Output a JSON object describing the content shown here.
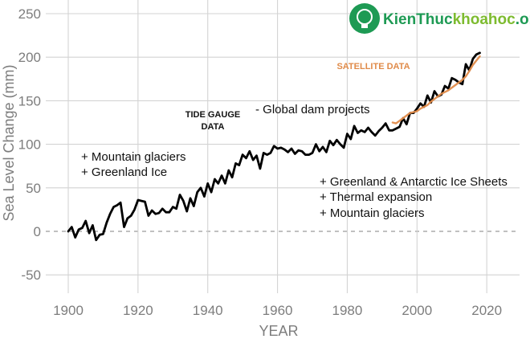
{
  "chart_data": {
    "type": "line",
    "xlabel": "YEAR",
    "ylabel": "Sea Level Change (mm)",
    "xlim": [
      1897,
      2024
    ],
    "ylim": [
      -62,
      252
    ],
    "x_ticks": [
      1900,
      1920,
      1940,
      1960,
      1980,
      2000,
      2020
    ],
    "y_ticks": [
      -50,
      0,
      50,
      100,
      150,
      200,
      250
    ],
    "grid": true,
    "zero_line": "dashed",
    "series": [
      {
        "name": "TIDE GAUGE DATA",
        "color": "#000000",
        "x": [
          1900,
          1901,
          1902,
          1903,
          1904,
          1905,
          1906,
          1907,
          1908,
          1909,
          1910,
          1911,
          1912,
          1913,
          1914,
          1915,
          1916,
          1917,
          1918,
          1919,
          1920,
          1921,
          1922,
          1923,
          1924,
          1925,
          1926,
          1927,
          1928,
          1929,
          1930,
          1931,
          1932,
          1933,
          1934,
          1935,
          1936,
          1937,
          1938,
          1939,
          1940,
          1941,
          1942,
          1943,
          1944,
          1945,
          1946,
          1947,
          1948,
          1949,
          1950,
          1951,
          1952,
          1953,
          1954,
          1955,
          1956,
          1957,
          1958,
          1959,
          1960,
          1961,
          1962,
          1963,
          1964,
          1965,
          1966,
          1967,
          1968,
          1969,
          1970,
          1971,
          1972,
          1973,
          1974,
          1975,
          1976,
          1977,
          1978,
          1979,
          1980,
          1981,
          1982,
          1983,
          1984,
          1985,
          1986,
          1987,
          1988,
          1989,
          1990,
          1991,
          1992,
          1993,
          1994,
          1995,
          1996,
          1997,
          1998,
          1999,
          2000,
          2001,
          2002,
          2003,
          2004,
          2005,
          2006,
          2007,
          2008,
          2009,
          2010,
          2011,
          2012,
          2013,
          2014,
          2015,
          2016,
          2017,
          2018
        ],
        "y": [
          0,
          5,
          -7,
          2,
          4,
          12,
          -2,
          7,
          -10,
          -4,
          -3,
          10,
          20,
          28,
          30,
          33,
          5,
          15,
          18,
          25,
          36,
          35,
          34,
          18,
          24,
          20,
          21,
          26,
          22,
          22,
          28,
          26,
          42,
          35,
          23,
          38,
          29,
          45,
          50,
          40,
          55,
          45,
          60,
          55,
          64,
          55,
          70,
          62,
          78,
          76,
          88,
          84,
          92,
          82,
          87,
          72,
          90,
          88,
          90,
          98,
          95,
          96,
          94,
          91,
          95,
          89,
          93,
          92,
          88,
          88,
          90,
          100,
          92,
          97,
          91,
          104,
          99,
          105,
          100,
          96,
          112,
          106,
          121,
          113,
          116,
          114,
          119,
          114,
          110,
          115,
          119,
          124,
          116,
          116,
          118,
          120,
          130,
          123,
          136,
          136,
          141,
          147,
          143,
          156,
          148,
          161,
          155,
          157,
          167,
          164,
          176,
          174,
          171,
          169,
          192,
          185,
          198,
          203,
          205
        ]
      },
      {
        "name": "SATELLITE DATA",
        "color": "#e08b4a",
        "x": [
          1993,
          1994,
          1995,
          1996,
          1997,
          1998,
          1999,
          2000,
          2001,
          2002,
          2003,
          2004,
          2005,
          2006,
          2007,
          2008,
          2009,
          2010,
          2011,
          2012,
          2013,
          2014,
          2015,
          2016,
          2017,
          2018
        ],
        "y": [
          125,
          124,
          127,
          130,
          133,
          136,
          137,
          138,
          141,
          143,
          145,
          149,
          152,
          155,
          158,
          160,
          162,
          165,
          168,
          171,
          174,
          178,
          184,
          191,
          196,
          201
        ]
      }
    ],
    "annotations": [
      "+ Mountain glaciers",
      "+ Greenland Ice",
      "- Global dam projects",
      "+ Greenland & Antarctic Ice Sheets",
      "+ Thermal expansion",
      "+ Mountain glaciers"
    ]
  },
  "labels": {
    "tide_gauge_line1": "TIDE GAUGE",
    "tide_gauge_line2": "DATA",
    "satellite": "SATELLITE DATA"
  },
  "watermark": {
    "text_main": "KienThuc",
    "text_accent": "khoahoc",
    "text_suffix": ".org",
    "color_main": "#1e9a54",
    "color_accent": "#7dbb2f"
  }
}
